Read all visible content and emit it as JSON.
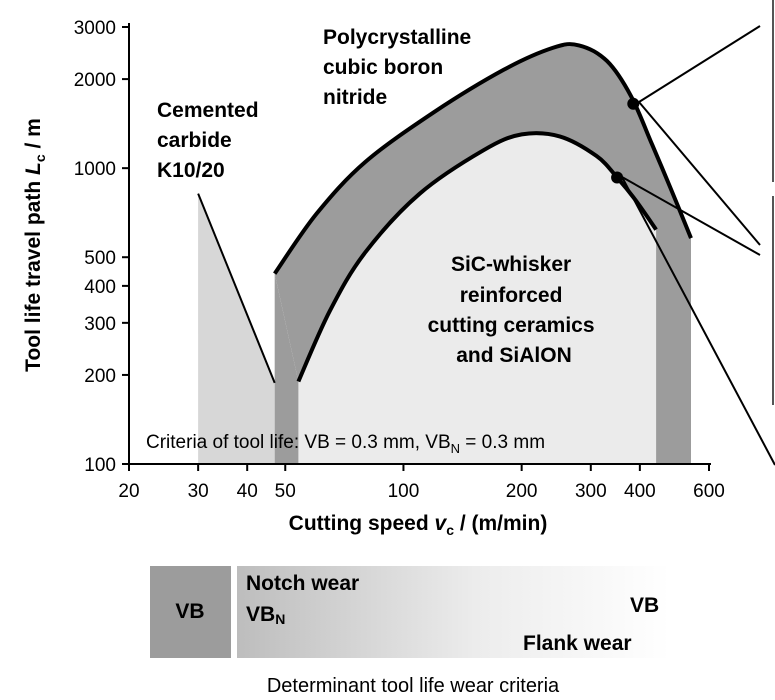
{
  "chart_data": {
    "type": "area",
    "xscale": "log",
    "yscale": "log",
    "xlim": [
      20,
      600
    ],
    "ylim": [
      100,
      3000
    ],
    "xlabel_main": "Cutting speed ",
    "xlabel_var": "v",
    "xlabel_sub": "c",
    "xlabel_unit": " / (m/min)",
    "ylabel_main": "Tool life travel path ",
    "ylabel_var": "L",
    "ylabel_sub": "c",
    "ylabel_unit": " / m",
    "xticks": [
      20,
      30,
      40,
      50,
      100,
      200,
      300,
      400,
      600
    ],
    "yticks": [
      100,
      200,
      300,
      400,
      500,
      1000,
      2000,
      3000
    ],
    "regions": [
      {
        "name": "Cemented carbide K10/20",
        "label_lines": [
          "Cemented",
          "carbide",
          "K10/20"
        ],
        "color": "#d7d7d7",
        "polygon": [
          [
            30,
            100
          ],
          [
            30,
            820
          ],
          [
            47,
            188
          ],
          [
            47,
            100
          ]
        ]
      },
      {
        "name": "Polycrystalline cubic boron nitride",
        "label_lines": [
          "Polycrystalline",
          "cubic boron",
          "nitride"
        ],
        "color": "#9c9c9c",
        "upper_curve": [
          [
            47,
            440
          ],
          [
            60,
            700
          ],
          [
            80,
            1050
          ],
          [
            120,
            1550
          ],
          [
            180,
            2150
          ],
          [
            240,
            2550
          ],
          [
            280,
            2600
          ],
          [
            330,
            2300
          ],
          [
            380,
            1750
          ],
          [
            430,
            1200
          ],
          [
            480,
            850
          ],
          [
            540,
            580
          ]
        ],
        "lower_curve": [
          [
            54,
            190
          ],
          [
            65,
            330
          ],
          [
            80,
            520
          ],
          [
            110,
            820
          ],
          [
            160,
            1150
          ],
          [
            200,
            1300
          ],
          [
            250,
            1280
          ],
          [
            310,
            1100
          ],
          [
            350,
            930
          ],
          [
            390,
            780
          ],
          [
            440,
            620
          ]
        ]
      },
      {
        "name": "SiC-whisker reinforced cutting ceramics and SiAlON",
        "label_lines": [
          "SiC-whisker",
          "reinforced",
          "cutting ceramics",
          "and SiAlON"
        ],
        "color": "#ebebeb"
      }
    ],
    "right_band_color": "#9c9c9c",
    "marker_points": [
      [
        385,
        1650
      ],
      [
        350,
        930
      ]
    ],
    "criteria_text": "Criteria of tool life: VB = 0.3 mm, VB",
    "criteria_sub": "N",
    "criteria_tail": " = 0.3 mm"
  },
  "wear_bar": {
    "vb_left": "VB",
    "notch_title": "Notch wear",
    "notch_label": "VB",
    "notch_sub": "N",
    "vb_right": "VB",
    "flank_label": "Flank wear",
    "caption": "Determinant tool life wear criteria",
    "block_color": "#9c9c9c"
  }
}
